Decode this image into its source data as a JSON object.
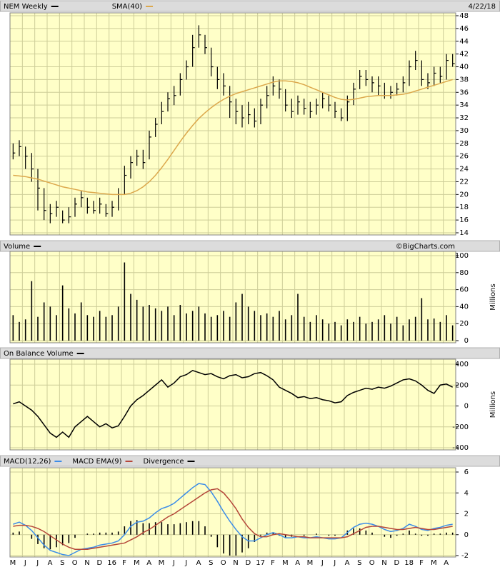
{
  "chart_data": [
    {
      "type": "ohlc",
      "date": "4/22/18",
      "ylim": [
        14,
        48
      ],
      "yticks": [
        14,
        16,
        18,
        20,
        22,
        24,
        26,
        28,
        30,
        32,
        34,
        36,
        38,
        40,
        42,
        44,
        46,
        48
      ],
      "grid": true,
      "series": [
        {
          "name": "NEM Weekly",
          "color": "#000000",
          "high": [
            28,
            28.5,
            27.5,
            26.5,
            24,
            21,
            18.5,
            19,
            17.5,
            18,
            19.5,
            20.5,
            19.5,
            19,
            19.5,
            18.5,
            19,
            21,
            24.5,
            26,
            27,
            27,
            30,
            32,
            34.5,
            36,
            37,
            39,
            41,
            45,
            46.5,
            45,
            43,
            40,
            39,
            37,
            35,
            34,
            34.5,
            33.5,
            35,
            37,
            38.5,
            38,
            36.5,
            35,
            35.5,
            35,
            34.5,
            35,
            36,
            35.5,
            34.5,
            33.5,
            35.5,
            37.5,
            39.5,
            39.5,
            38.5,
            38.5,
            37.5,
            37,
            37.5,
            38.5,
            41,
            42.5,
            41,
            39,
            40,
            40,
            42,
            42
          ],
          "low": [
            25.5,
            26,
            24,
            22,
            17.5,
            16,
            15.5,
            16.5,
            15.5,
            15.5,
            16.5,
            18,
            17,
            17,
            17,
            16.5,
            16.5,
            17.5,
            20,
            22.5,
            24.5,
            24,
            25.5,
            29,
            31,
            33,
            34,
            35.5,
            38,
            40,
            43,
            42,
            38.5,
            36.5,
            35.5,
            32,
            31,
            30.5,
            31,
            30.5,
            31,
            33.5,
            35.5,
            35,
            33,
            32,
            32.5,
            32.5,
            32,
            32.5,
            33.5,
            33,
            32,
            31.5,
            31.5,
            34,
            36.5,
            37,
            36,
            35.5,
            35,
            35,
            35.5,
            36,
            37,
            39.5,
            37,
            36.5,
            37,
            37.5,
            38,
            40
          ],
          "close": [
            26.5,
            27.5,
            26,
            24,
            21,
            17.5,
            17,
            18,
            16,
            16.5,
            18.5,
            19.5,
            18,
            17.5,
            18.5,
            17,
            18,
            20,
            23,
            25,
            26,
            25,
            29,
            31,
            33,
            35,
            35.5,
            38,
            40,
            43,
            45,
            43,
            40,
            38,
            37,
            34.5,
            33,
            32,
            32.5,
            31.5,
            34,
            35.5,
            37,
            36.5,
            34,
            33,
            34.5,
            33.5,
            33,
            34,
            35,
            34,
            33,
            32,
            34.5,
            36.5,
            38.5,
            38,
            37.5,
            37,
            35.5,
            36,
            36.5,
            37.5,
            40,
            41,
            38,
            37.5,
            39,
            38.5,
            41,
            40.5
          ]
        },
        {
          "name": "SMA(40)",
          "color": "#dca84c",
          "values": [
            23,
            22.9,
            22.8,
            22.6,
            22.4,
            22.1,
            21.8,
            21.5,
            21.2,
            21,
            20.8,
            20.6,
            20.4,
            20.3,
            20.2,
            20.1,
            20,
            20,
            20,
            20.2,
            20.6,
            21.2,
            22,
            23,
            24.2,
            25.5,
            26.9,
            28.3,
            29.6,
            30.8,
            31.9,
            32.8,
            33.6,
            34.3,
            34.9,
            35.4,
            35.8,
            36.1,
            36.4,
            36.7,
            37,
            37.3,
            37.6,
            37.8,
            37.8,
            37.7,
            37.5,
            37.2,
            36.8,
            36.4,
            36,
            35.6,
            35.2,
            34.9,
            34.8,
            34.9,
            35.1,
            35.3,
            35.4,
            35.5,
            35.5,
            35.5,
            35.6,
            35.7,
            35.9,
            36.2,
            36.5,
            36.8,
            37.1,
            37.4,
            37.7,
            38
          ]
        }
      ]
    },
    {
      "type": "bar",
      "credit": "©BigCharts.com",
      "y_label": "Millions",
      "ylim": [
        0,
        100
      ],
      "yticks": [
        0,
        20,
        40,
        60,
        80,
        100
      ],
      "grid": true,
      "series": [
        {
          "name": "Volume",
          "color": "#000000",
          "values": [
            30,
            22,
            25,
            70,
            28,
            45,
            40,
            30,
            65,
            38,
            32,
            45,
            30,
            28,
            35,
            28,
            30,
            40,
            92,
            55,
            48,
            40,
            42,
            38,
            35,
            40,
            30,
            42,
            32,
            35,
            40,
            32,
            28,
            30,
            35,
            28,
            45,
            55,
            40,
            35,
            30,
            32,
            28,
            35,
            25,
            30,
            55,
            28,
            22,
            30,
            25,
            20,
            22,
            18,
            25,
            22,
            28,
            20,
            22,
            25,
            30,
            20,
            28,
            18,
            25,
            28,
            50,
            25,
            26,
            22,
            30,
            18
          ]
        }
      ]
    },
    {
      "type": "line",
      "y_label": "Millions",
      "ylim": [
        -400,
        400
      ],
      "yticks": [
        -400,
        -200,
        0,
        200,
        400
      ],
      "grid": true,
      "series": [
        {
          "name": "On Balance Volume",
          "color": "#000000",
          "values": [
            20,
            40,
            0,
            -40,
            -100,
            -180,
            -260,
            -300,
            -250,
            -300,
            -200,
            -150,
            -100,
            -150,
            -200,
            -170,
            -210,
            -190,
            -100,
            0,
            60,
            100,
            150,
            200,
            250,
            180,
            220,
            280,
            300,
            340,
            320,
            300,
            310,
            280,
            260,
            290,
            300,
            270,
            280,
            310,
            320,
            290,
            250,
            180,
            150,
            120,
            80,
            90,
            70,
            80,
            60,
            50,
            30,
            40,
            100,
            130,
            150,
            170,
            160,
            180,
            170,
            190,
            220,
            250,
            260,
            240,
            200,
            150,
            120,
            200,
            210,
            180
          ]
        }
      ]
    },
    {
      "type": "macd",
      "ylim": [
        -2,
        6
      ],
      "yticks": [
        -2,
        0,
        2,
        4,
        6
      ],
      "grid": true,
      "x_labels": [
        "M",
        "J",
        "J",
        "A",
        "S",
        "O",
        "N",
        "D",
        "16",
        "F",
        "M",
        "A",
        "M",
        "J",
        "J",
        "A",
        "S",
        "O",
        "N",
        "D",
        "17",
        "F",
        "M",
        "A",
        "M",
        "J",
        "J",
        "A",
        "S",
        "O",
        "N",
        "D",
        "18",
        "F",
        "M",
        "A"
      ],
      "series": [
        {
          "name": "MACD(12,26)",
          "color": "#3c8de8",
          "values": [
            1,
            1.2,
            0.9,
            0.4,
            -0.3,
            -1,
            -1.5,
            -1.7,
            -1.9,
            -2,
            -1.7,
            -1.4,
            -1.3,
            -1.2,
            -1,
            -0.9,
            -0.8,
            -0.6,
            0,
            0.8,
            1.2,
            1.3,
            1.6,
            2.1,
            2.5,
            2.7,
            3,
            3.5,
            4,
            4.5,
            4.9,
            4.8,
            4.1,
            3.2,
            2.2,
            1.3,
            0.5,
            -0.2,
            -0.6,
            -0.6,
            -0.3,
            0,
            0.2,
            0,
            -0.3,
            -0.3,
            -0.2,
            -0.3,
            -0.3,
            -0.2,
            -0.3,
            -0.4,
            -0.4,
            -0.3,
            0.2,
            0.7,
            1,
            1.1,
            1,
            0.8,
            0.5,
            0.3,
            0.4,
            0.6,
            1,
            0.8,
            0.5,
            0.4,
            0.6,
            0.7,
            0.9,
            1
          ]
        },
        {
          "name": "MACD EMA(9)",
          "color": "#b5473a",
          "values": [
            0.8,
            0.9,
            0.9,
            0.8,
            0.6,
            0.3,
            -0.1,
            -0.5,
            -0.9,
            -1.2,
            -1.4,
            -1.4,
            -1.4,
            -1.3,
            -1.2,
            -1.1,
            -1,
            -0.9,
            -0.8,
            -0.5,
            -0.2,
            0.2,
            0.5,
            0.9,
            1.3,
            1.7,
            2,
            2.4,
            2.8,
            3.2,
            3.6,
            4,
            4.3,
            4.4,
            4,
            3.3,
            2.5,
            1.5,
            0.7,
            0.1,
            -0.2,
            -0.2,
            0,
            0.1,
            0,
            -0.1,
            -0.2,
            -0.2,
            -0.3,
            -0.3,
            -0.3,
            -0.3,
            -0.3,
            -0.3,
            -0.2,
            0.1,
            0.4,
            0.7,
            0.8,
            0.8,
            0.7,
            0.6,
            0.5,
            0.5,
            0.6,
            0.7,
            0.6,
            0.5,
            0.5,
            0.6,
            0.7,
            0.8
          ]
        },
        {
          "name": "Divergence",
          "color": "#000000",
          "style": "bar",
          "values": [
            0.2,
            0.3,
            0,
            -0.4,
            -0.9,
            -1.3,
            -1.4,
            -1.2,
            -1,
            -0.8,
            -0.3,
            0,
            0.1,
            0.1,
            0.2,
            0.2,
            0.2,
            0.3,
            0.8,
            1.3,
            1.4,
            1.1,
            1.1,
            1.2,
            1.2,
            1,
            1,
            1.1,
            1.2,
            1.3,
            1.3,
            0.8,
            -0.2,
            -1.2,
            -1.8,
            -2,
            -2,
            -1.7,
            -1.3,
            -0.7,
            -0.1,
            0.2,
            0.2,
            -0.1,
            -0.3,
            -0.2,
            0,
            -0.1,
            0,
            0.1,
            0,
            -0.1,
            -0.1,
            0,
            0.4,
            0.6,
            0.6,
            0.4,
            0.2,
            0,
            -0.2,
            -0.3,
            -0.1,
            0.1,
            0.4,
            0.1,
            -0.1,
            -0.1,
            0.1,
            0.1,
            0.2,
            0.2
          ]
        }
      ]
    }
  ]
}
